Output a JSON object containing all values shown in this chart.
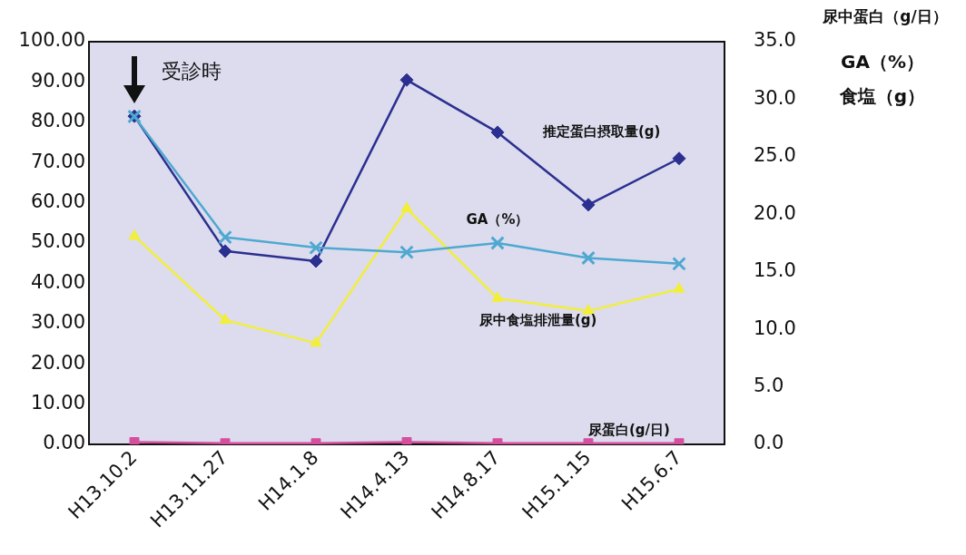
{
  "chart_data": {
    "type": "line",
    "y2label": "尿中蛋白（g/日）",
    "categories": [
      "H13.10.2",
      "H13.11.27",
      "H14.1.8",
      "H14.4.13",
      "H14.8.17",
      "H15.1.15",
      "H15.6.7"
    ],
    "series": [
      {
        "name": "推定蛋白摂取量(g)",
        "color": "#2b2f8f",
        "marker": "diamond",
        "values": [
          81.5,
          48,
          45.5,
          90.5,
          77.5,
          59.5,
          71
        ]
      },
      {
        "name": "GA（%）",
        "color": "#4fa8d0",
        "marker": "cross",
        "axis": "y2",
        "values": [
          28.5,
          18.0,
          17.1,
          16.7,
          17.5,
          16.2,
          15.7
        ]
      },
      {
        "name": "尿中食塩排泄量(g)",
        "color": "#f2ee3c",
        "marker": "triangle",
        "axis": "y2",
        "values": [
          18.1,
          10.8,
          8.8,
          20.5,
          12.7,
          11.6,
          13.5
        ]
      },
      {
        "name": "尿蛋白(g/日)",
        "color": "#d64f9e",
        "marker": "square",
        "axis": "y2",
        "values": [
          0.2,
          0.1,
          0.1,
          0.2,
          0.1,
          0.1,
          0.1
        ]
      }
    ],
    "annotations": [
      {
        "text": "受診時",
        "x": "H13.10.2",
        "y": 81.5
      },
      "GA（%）",
      "食塩（g）"
    ],
    "ylim": [
      0,
      100
    ],
    "yticks": [
      {
        "value": 0,
        "label": "0.00"
      },
      {
        "value": 10,
        "label": "10.00"
      },
      {
        "value": 20,
        "label": "20.00"
      },
      {
        "value": 30,
        "label": "30.00"
      },
      {
        "value": 40,
        "label": "40.00"
      },
      {
        "value": 50,
        "label": "50.00"
      },
      {
        "value": 60,
        "label": "60.00"
      },
      {
        "value": 70,
        "label": "70.00"
      },
      {
        "value": 80,
        "label": "80.00"
      },
      {
        "value": 90,
        "label": "90.00"
      },
      {
        "value": 100,
        "label": "100.00"
      }
    ],
    "y2lim": [
      0,
      35
    ],
    "y2ticks": [
      {
        "value": 0,
        "label": "0.0"
      },
      {
        "value": 5,
        "label": "5.0"
      },
      {
        "value": 10,
        "label": "10.0"
      },
      {
        "value": 15,
        "label": "15.0"
      },
      {
        "value": 20,
        "label": "20.0"
      },
      {
        "value": 25,
        "label": "25.0"
      },
      {
        "value": 30,
        "label": "30.0"
      },
      {
        "value": 35,
        "label": "35.0"
      }
    ],
    "grid": false,
    "legend": false
  }
}
